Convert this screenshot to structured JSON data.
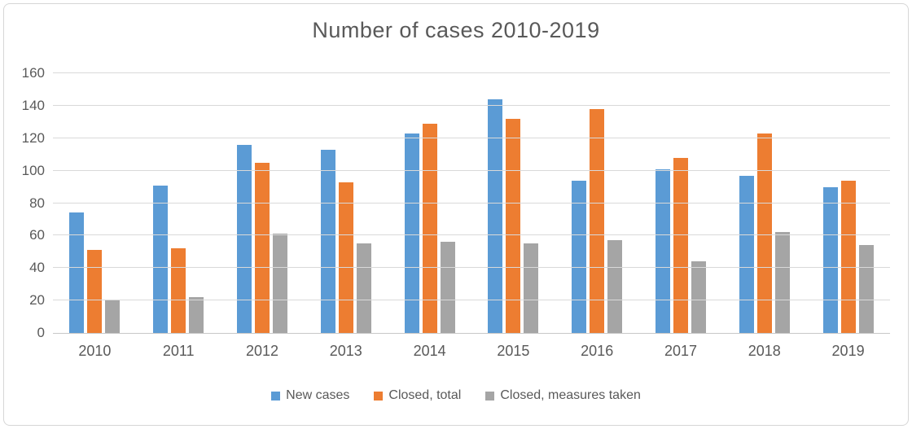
{
  "chart_data": {
    "type": "bar",
    "title": "Number of cases 2010-2019",
    "categories": [
      "2010",
      "2011",
      "2012",
      "2013",
      "2014",
      "2015",
      "2016",
      "2017",
      "2018",
      "2019"
    ],
    "series": [
      {
        "name": "New cases",
        "color": "#5B9BD5",
        "values": [
          74,
          91,
          116,
          113,
          123,
          144,
          94,
          101,
          97,
          90
        ]
      },
      {
        "name": "Closed, total",
        "color": "#ED7D31",
        "values": [
          51,
          52,
          105,
          93,
          129,
          132,
          138,
          108,
          123,
          94
        ]
      },
      {
        "name": "Closed, measures taken",
        "color": "#A5A5A5",
        "values": [
          20,
          22,
          61,
          55,
          56,
          55,
          57,
          44,
          62,
          54
        ]
      }
    ],
    "ylim": [
      0,
      160
    ],
    "yticks": [
      0,
      20,
      40,
      60,
      80,
      100,
      120,
      140,
      160
    ],
    "grid": true,
    "legend_position": "bottom",
    "colors": {
      "gridline": "#d9d9d9",
      "axis_line": "#c7c7c7",
      "text": "#595959",
      "frame_border": "#d6d6d6"
    }
  }
}
